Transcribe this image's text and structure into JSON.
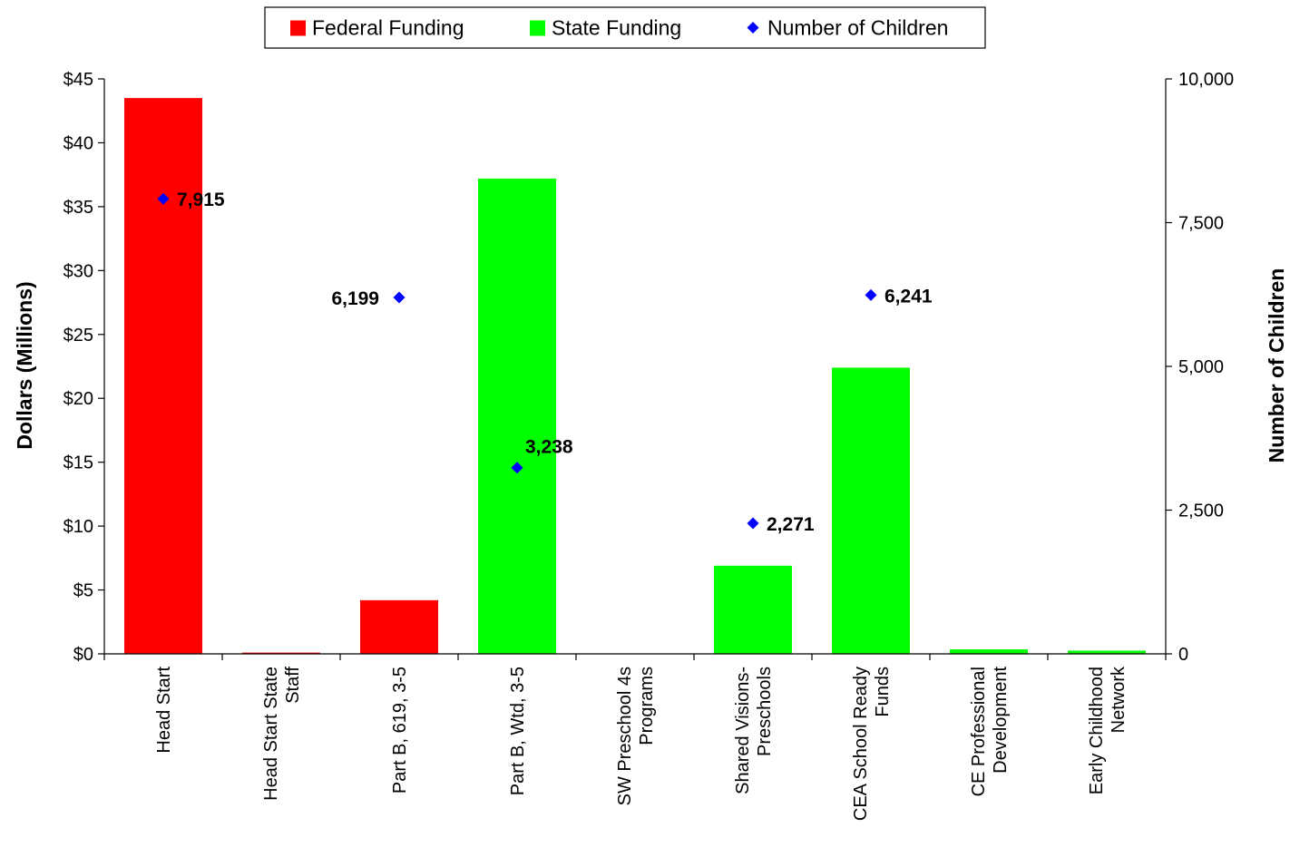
{
  "chart_data": {
    "type": "bar",
    "categories": [
      [
        "Head Start"
      ],
      [
        "Head Start State",
        "Staff"
      ],
      [
        "Part B, 619, 3-5"
      ],
      [
        "Part B, Wtd, 3-5"
      ],
      [
        "SW Preschool 4s",
        "Programs"
      ],
      [
        "Shared Visions-",
        "Preschools"
      ],
      [
        "CEA School Ready",
        "Funds"
      ],
      [
        "CE Professional",
        "Development"
      ],
      [
        "Early Childhood",
        "Network"
      ]
    ],
    "series": [
      {
        "name": "Federal Funding",
        "kind": "bar",
        "axis": "left",
        "color": "#ff0000",
        "values": [
          43.5,
          0.1,
          4.2,
          0,
          0,
          0,
          0,
          0,
          0
        ]
      },
      {
        "name": "State Funding",
        "kind": "bar",
        "axis": "left",
        "color": "#00ff00",
        "values": [
          0,
          0,
          0,
          37.2,
          0,
          6.9,
          22.4,
          0.35,
          0.25
        ]
      },
      {
        "name": "Number of Children",
        "kind": "scatter",
        "axis": "right",
        "color": "#0000ff",
        "values": [
          7915,
          null,
          6199,
          3238,
          null,
          2271,
          6241,
          null,
          null
        ],
        "labels": [
          "7,915",
          null,
          "6,199",
          "3,238",
          null,
          "2,271",
          "6,241",
          null,
          null
        ]
      }
    ],
    "ylabel": "Dollars (Millions)",
    "y2label": "Number of Children",
    "ylim": [
      0,
      45
    ],
    "y2lim": [
      0,
      10000
    ],
    "yticks": [
      "$0",
      "$5",
      "$10",
      "$15",
      "$20",
      "$25",
      "$30",
      "$35",
      "$40",
      "$45"
    ],
    "y2ticks": [
      "0",
      "2,500",
      "5,000",
      "7,500",
      "10,000"
    ],
    "grid": false,
    "legend_position": "top"
  }
}
